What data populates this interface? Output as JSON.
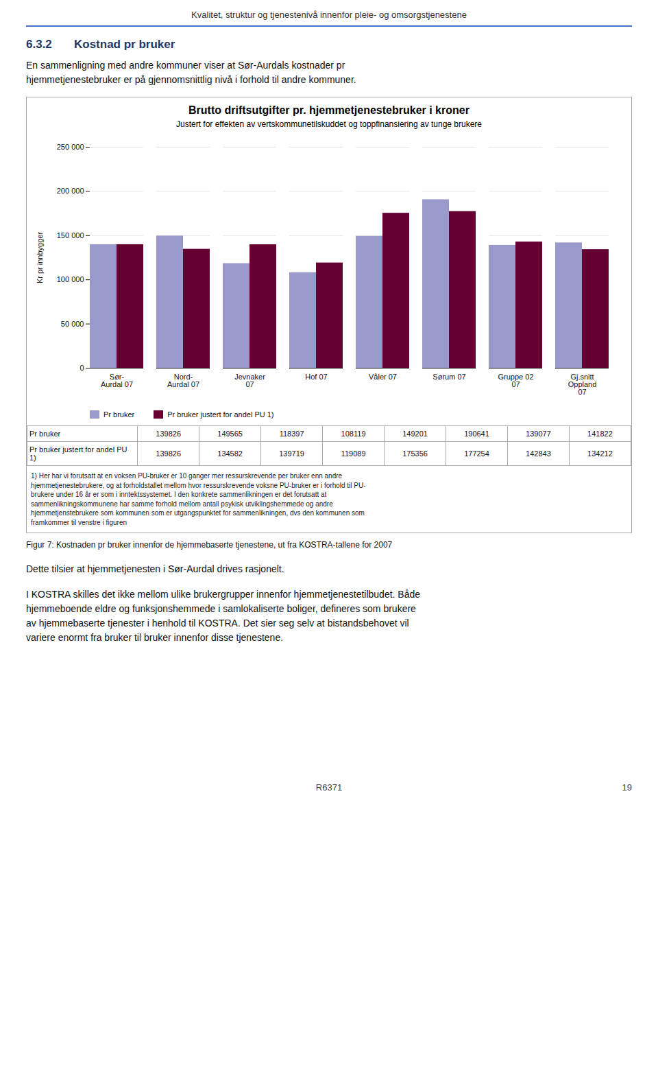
{
  "page_title": "Kvalitet, struktur og tjenestenivå innenfor pleie- og omsorgstjenestene",
  "section_number": "6.3.2",
  "section_title": "Kostnad pr bruker",
  "section_text": [
    "En sammenligning med andre kommuner viser at Sør-Aurdals kostnader pr",
    "hjemmetjenestebruker er på gjennomsnittlig nivå i forhold til andre kommuner."
  ],
  "figure_caption": "Figur 7: Kostnaden pr bruker innenfor de hjemmebaserte tjenestene, ut fra KOSTRA-tallene for 2007",
  "body_text": [
    "Dette tilsier at hjemmetjenesten i Sør-Aurdal drives rasjonelt."
  ],
  "body_text2": [
    "I KOSTRA skilles det ikke mellom ulike brukergrupper innenfor hjemmetjenestetilbudet. Både",
    "hjemmeboende eldre og funksjonshemmede i samlokaliserte boliger, defineres som brukere",
    "av hjemmebaserte tjenester i henhold til KOSTRA. Det sier seg selv at bistandsbehovet vil",
    "variere enormt fra bruker til bruker innenfor disse tjenestene."
  ],
  "footer": "R6371",
  "page_number": "19",
  "chart_data": {
    "type": "bar",
    "title": "Brutto driftsutgifter pr. hjemmetjenestebruker i kroner",
    "subtitle": "Justert for effekten av vertskommunetilskuddet og toppfinansiering av tunge brukere",
    "ylabel": "Kr pr innbygger",
    "categories": [
      "Sør-\nAurdal 07",
      "Nord-\nAurdal 07",
      "Jevnaker\n07",
      "Hof 07",
      "Våler 07",
      "Sørum 07",
      "Gruppe 02\n07",
      "Gj.snitt\nOppland\n07"
    ],
    "series": [
      {
        "name": "Pr bruker",
        "color": "#9999CC",
        "values": [
          139826,
          149565,
          118397,
          108119,
          149201,
          190641,
          139077,
          141822
        ]
      },
      {
        "name": "Pr bruker justert for andel PU 1)",
        "color": "#660033",
        "values": [
          139826,
          134582,
          139719,
          119089,
          175356,
          177254,
          142843,
          134212
        ]
      }
    ],
    "ylim": [
      0,
      250000
    ],
    "yticks": [
      0,
      {
        "value": 50000,
        "label": "50 000"
      },
      {
        "value": 100000,
        "label": "100 000"
      },
      {
        "value": 150000,
        "label": "150 000"
      },
      {
        "value": 200000,
        "label": "200 000"
      },
      {
        "value": 250000,
        "label": "250 000"
      }
    ],
    "grid": true,
    "legend": "bottom",
    "footnote": [
      "1) Her har vi forutsatt at en voksen PU-bruker er 10 ganger mer ressurskrevende per bruker enn andre",
      "hjemmetjenestebrukere, og at forholdstallet mellom hvor ressurskrevende voksne PU-bruker er i forhold til PU-",
      "brukere under 16 år er som i inntektssystemet. I den konkrete sammenlikningen er det forutsatt at",
      "sammenlikningskommunene har samme forhold mellom antall psykisk utviklingshemmede og andre",
      "hjemmetjenstebrukere som kommunen som er utgangspunktet for sammenlikningen, dvs den kommunen som",
      "framkommer til venstre i figuren"
    ]
  }
}
